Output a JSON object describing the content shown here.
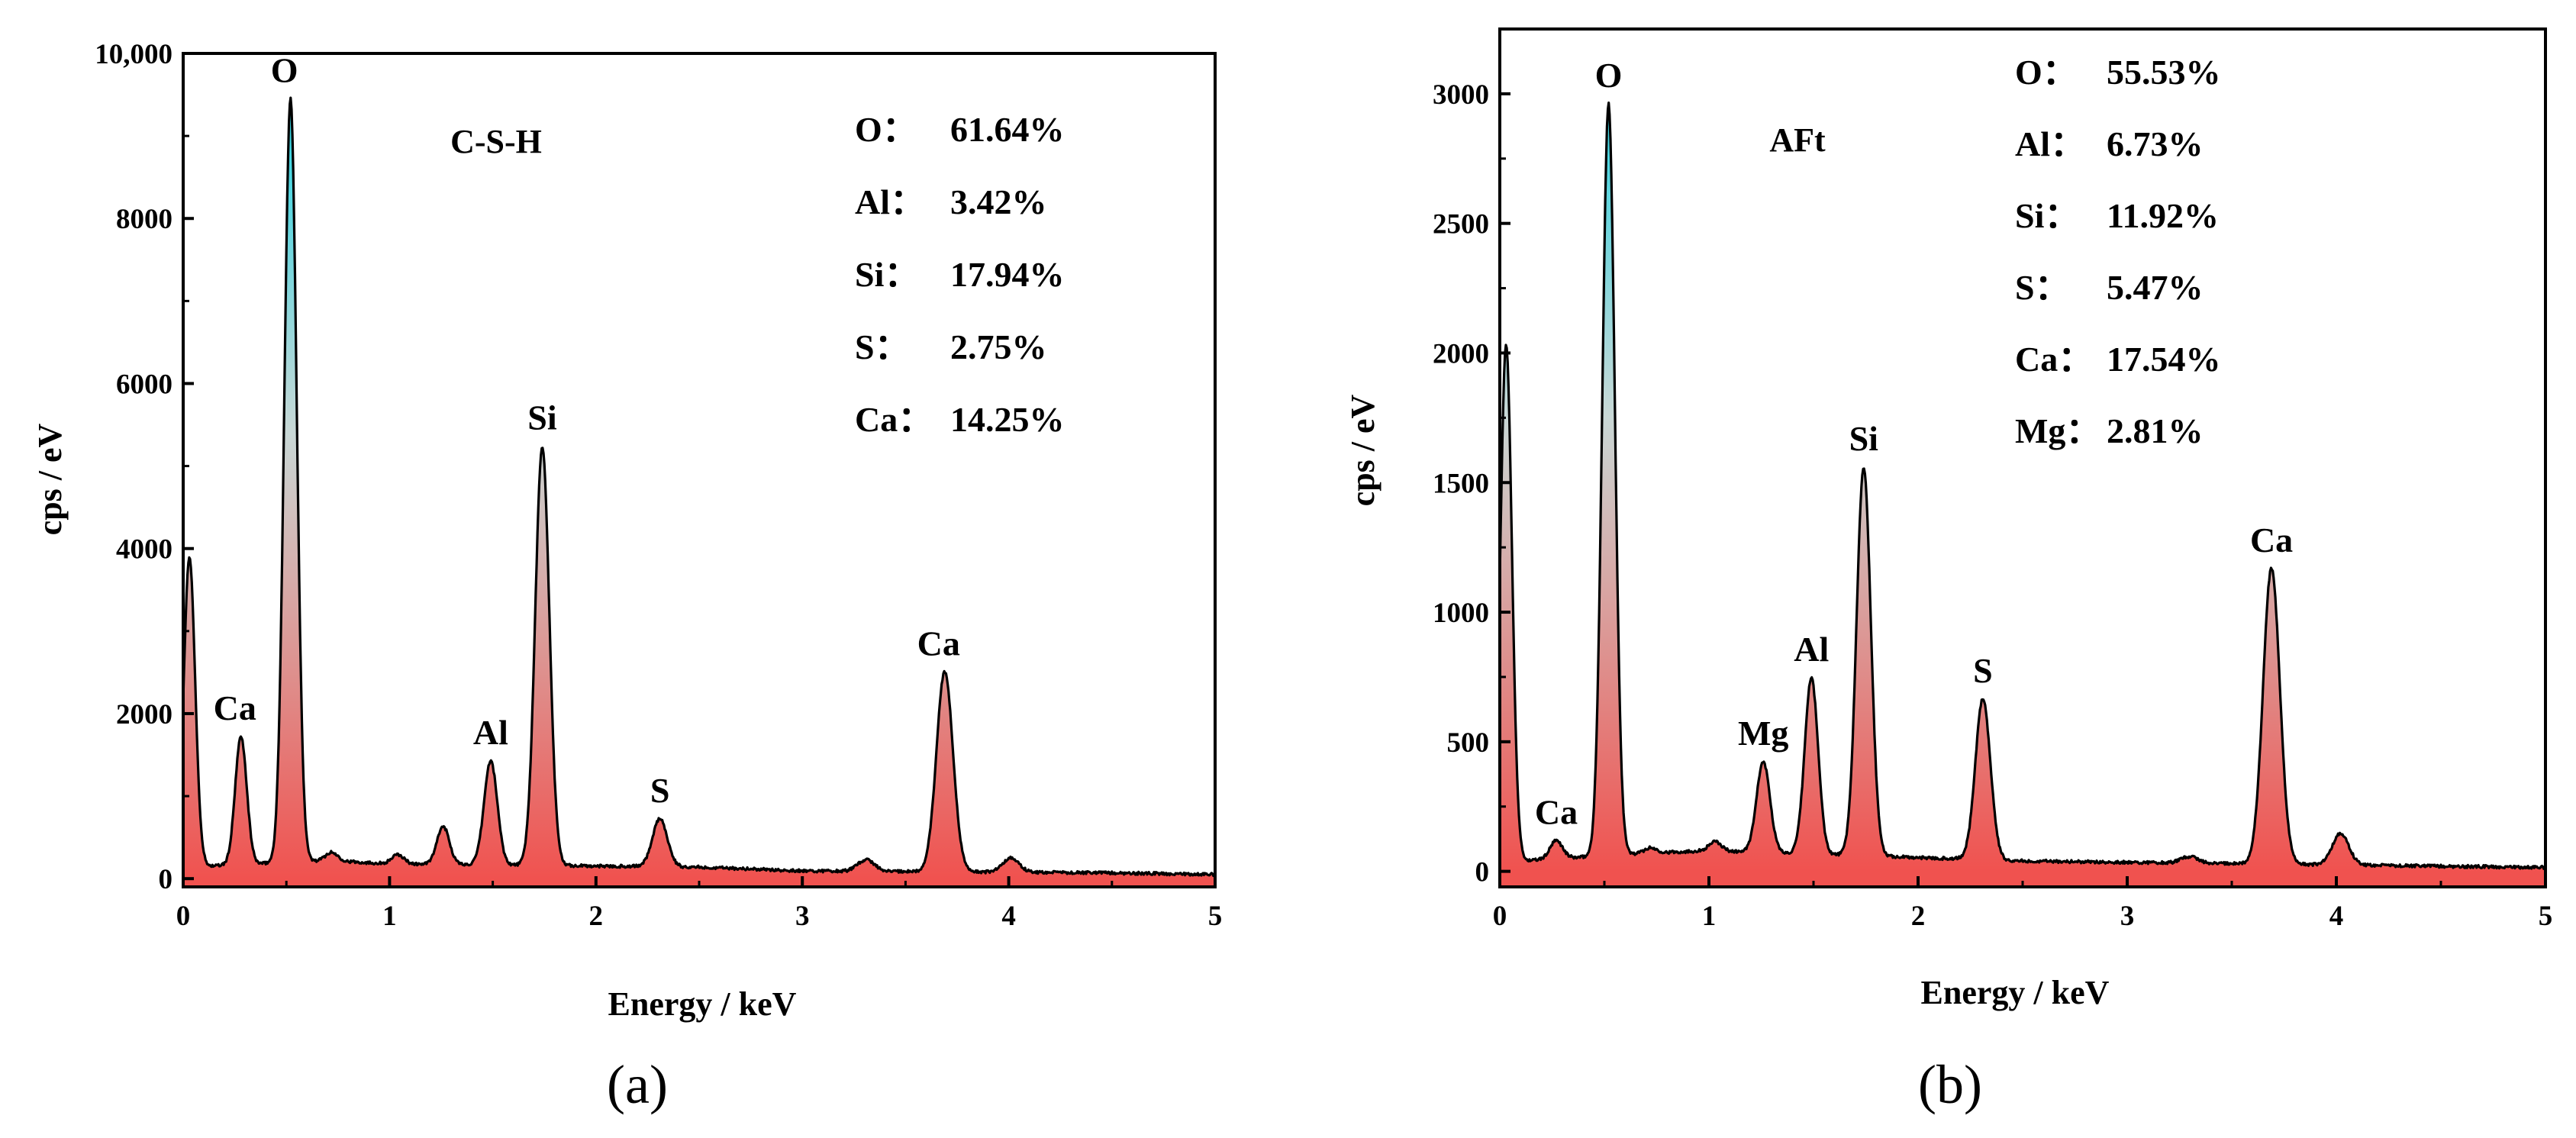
{
  "chart_data": [
    {
      "type": "area",
      "phase": "C-S-H",
      "xlabel": "Energy / keV",
      "ylabel": "cps / eV",
      "xlim": [
        0,
        5
      ],
      "ylim": [
        -100,
        10000
      ],
      "xticks": [
        "0",
        "1",
        "2",
        "3",
        "4",
        "5"
      ],
      "yticks": [
        "0",
        "2000",
        "4000",
        "6000",
        "8000",
        "10,000"
      ],
      "baseline": [
        [
          0.1,
          150
        ],
        [
          0.7,
          220
        ],
        [
          1.0,
          180
        ],
        [
          2.5,
          140
        ],
        [
          3.0,
          95
        ],
        [
          4.5,
          70
        ],
        [
          5.0,
          50
        ]
      ],
      "peaks": [
        {
          "x": 0.03,
          "y": 3850,
          "w": 0.028,
          "label": ""
        },
        {
          "x": 0.28,
          "y": 1550,
          "w": 0.028,
          "label": "Ca"
        },
        {
          "x": 0.52,
          "y": 9250,
          "w": 0.03,
          "label": "O"
        },
        {
          "x": 0.72,
          "y": 100,
          "w": 0.03,
          "label": ""
        },
        {
          "x": 1.04,
          "y": 110,
          "w": 0.03,
          "label": ""
        },
        {
          "x": 1.26,
          "y": 460,
          "w": 0.03,
          "label": ""
        },
        {
          "x": 1.49,
          "y": 1260,
          "w": 0.032,
          "label": "Al"
        },
        {
          "x": 1.74,
          "y": 5080,
          "w": 0.034,
          "label": "Si"
        },
        {
          "x": 2.31,
          "y": 580,
          "w": 0.036,
          "label": "S"
        },
        {
          "x": 3.31,
          "y": 140,
          "w": 0.04,
          "label": ""
        },
        {
          "x": 3.69,
          "y": 2420,
          "w": 0.04,
          "label": "Ca"
        },
        {
          "x": 4.01,
          "y": 170,
          "w": 0.04,
          "label": ""
        }
      ],
      "composition": [
        {
          "element": "O",
          "value": "61.64%"
        },
        {
          "element": "Al",
          "value": "3.42%"
        },
        {
          "element": "Si",
          "value": "17.94%"
        },
        {
          "element": "S",
          "value": "2.75%"
        },
        {
          "element": "Ca",
          "value": "14.25%"
        }
      ],
      "panel_label": "(a)"
    },
    {
      "type": "area",
      "phase": "AFt",
      "xlabel": "Energy / keV",
      "ylabel": "cps / eV",
      "xlim": [
        0,
        5
      ],
      "ylim": [
        -60,
        3250
      ],
      "xticks": [
        "0",
        "1",
        "2",
        "3",
        "4",
        "5"
      ],
      "yticks": [
        "0",
        "500",
        "1000",
        "1500",
        "2000",
        "2500",
        "3000"
      ],
      "baseline": [
        [
          0.1,
          40
        ],
        [
          0.7,
          70
        ],
        [
          1.0,
          80
        ],
        [
          2.5,
          40
        ],
        [
          3.0,
          35
        ],
        [
          4.5,
          20
        ],
        [
          5.0,
          15
        ]
      ],
      "peaks": [
        {
          "x": 0.03,
          "y": 2020,
          "w": 0.028,
          "label": ""
        },
        {
          "x": 0.27,
          "y": 70,
          "w": 0.03,
          "label": "Ca"
        },
        {
          "x": 0.52,
          "y": 2900,
          "w": 0.03,
          "label": "O"
        },
        {
          "x": 0.72,
          "y": 20,
          "w": 0.03,
          "label": ""
        },
        {
          "x": 1.03,
          "y": 35,
          "w": 0.03,
          "label": ""
        },
        {
          "x": 1.26,
          "y": 350,
          "w": 0.032,
          "label": "Mg"
        },
        {
          "x": 1.49,
          "y": 680,
          "w": 0.032,
          "label": "Al"
        },
        {
          "x": 1.74,
          "y": 1500,
          "w": 0.034,
          "label": "Si"
        },
        {
          "x": 2.31,
          "y": 620,
          "w": 0.036,
          "label": "S"
        },
        {
          "x": 3.3,
          "y": 25,
          "w": 0.04,
          "label": ""
        },
        {
          "x": 3.69,
          "y": 1140,
          "w": 0.04,
          "label": "Ca"
        },
        {
          "x": 4.02,
          "y": 120,
          "w": 0.04,
          "label": ""
        }
      ],
      "composition": [
        {
          "element": "O",
          "value": "55.53%"
        },
        {
          "element": "Al",
          "value": "6.73%"
        },
        {
          "element": "Si",
          "value": "11.92%"
        },
        {
          "element": "S",
          "value": "5.47%"
        },
        {
          "element": "Ca",
          "value": "17.54%"
        },
        {
          "element": "Mg",
          "value": "2.81%"
        }
      ],
      "panel_label": "(b)"
    }
  ],
  "colors": {
    "fill_main": "#f0524f",
    "fill_top": "#2fd5e3",
    "fill_mid": "#c9d8d6",
    "line": "#000000"
  },
  "separator": "："
}
